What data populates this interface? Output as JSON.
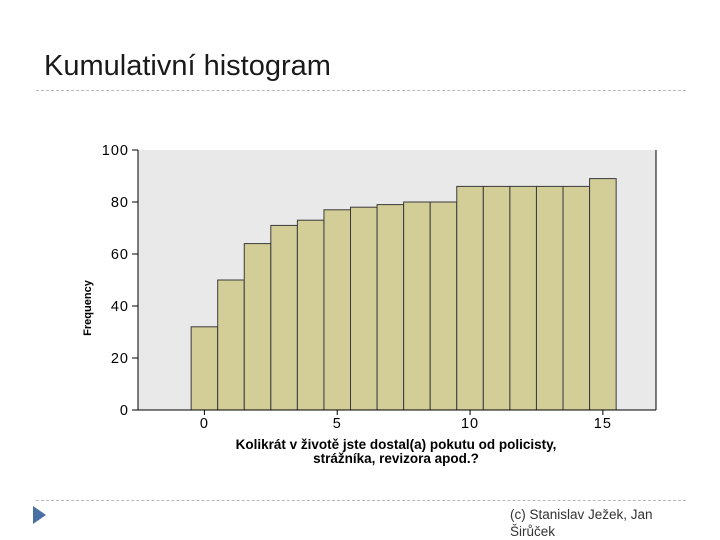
{
  "slide": {
    "title": "Kumulativní histogram",
    "footer": "(c) Stanislav Ježek, Jan Širůček"
  },
  "colors": {
    "bar_fill": "#d3cd98",
    "bar_stroke": "#3a3a3a",
    "plot_background": "#e9e9e9",
    "accent": "#4a6fa5"
  },
  "icons": {
    "nav": "triangle-right-icon"
  },
  "chart_data": {
    "type": "bar",
    "categories": [
      "0",
      "1",
      "2",
      "3",
      "4",
      "5",
      "6",
      "7",
      "8",
      "9",
      "10",
      "11",
      "12",
      "13",
      "14",
      "15"
    ],
    "values": [
      32,
      50,
      64,
      71,
      73,
      77,
      78,
      79,
      80,
      80,
      86,
      86,
      86,
      86,
      86,
      89
    ],
    "title": "",
    "xlabel": "Kolikrát v životě jste dostal(a) pokutu od policisty, strážníka, revizora apod.?",
    "xlabel_lines": [
      "Kolikrát v životě jste dostal(a) pokutu od policisty,",
      "strážníka, revizora apod.?"
    ],
    "ylabel": "Frequency",
    "xlim": [
      -2.5,
      17
    ],
    "ylim": [
      0,
      100
    ],
    "yticks": [
      0,
      20,
      40,
      60,
      80,
      100
    ],
    "xticks": [
      0,
      5,
      10,
      15
    ],
    "grid": false,
    "legend": "none"
  }
}
